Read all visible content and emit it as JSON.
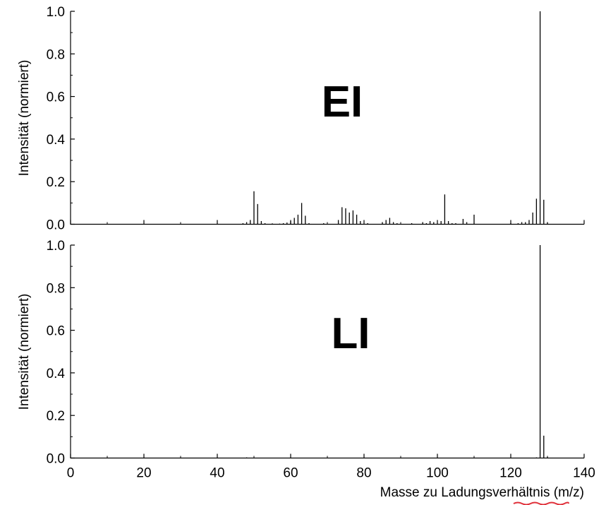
{
  "chart_data": [
    {
      "type": "bar",
      "title": "EI",
      "xlabel": "",
      "ylabel": "Intensität (normiert)",
      "xlim": [
        0,
        140
      ],
      "ylim": [
        0,
        1.0
      ],
      "x_ticks": [
        "0",
        "20",
        "40",
        "60",
        "80",
        "100",
        "120",
        "140"
      ],
      "y_ticks": [
        "0.0",
        "0.2",
        "0.4",
        "0.6",
        "0.8",
        "1.0"
      ],
      "grid": false,
      "series": [
        {
          "x": [
            47,
            48,
            49,
            50,
            51,
            52,
            53,
            55,
            57,
            58,
            59,
            60,
            61,
            62,
            63,
            64,
            65,
            69,
            73,
            74,
            75,
            76,
            77,
            78,
            79,
            81,
            85,
            86,
            87,
            88,
            89,
            93,
            96,
            97,
            98,
            99,
            101,
            102,
            103,
            104,
            105,
            107,
            108,
            110,
            120,
            122,
            123,
            124,
            125,
            126,
            127,
            128,
            129,
            130
          ],
          "values": [
            0.005,
            0.01,
            0.02,
            0.155,
            0.095,
            0.015,
            0.005,
            0.004,
            0.003,
            0.005,
            0.008,
            0.015,
            0.03,
            0.045,
            0.1,
            0.04,
            0.005,
            0.005,
            0.02,
            0.08,
            0.075,
            0.055,
            0.065,
            0.045,
            0.015,
            0.005,
            0.01,
            0.02,
            0.03,
            0.01,
            0.005,
            0.005,
            0.01,
            0.005,
            0.015,
            0.01,
            0.015,
            0.14,
            0.015,
            0.005,
            0.005,
            0.025,
            0.01,
            0.045,
            0.005,
            0.005,
            0.01,
            0.01,
            0.02,
            0.055,
            0.12,
            1.0,
            0.115,
            0.01
          ]
        }
      ]
    },
    {
      "type": "bar",
      "title": "LI",
      "xlabel": "Masse zu Ladungsverhältnis (m/z)",
      "ylabel": "Intensität (normiert)",
      "xlim": [
        0,
        140
      ],
      "ylim": [
        0,
        1.0
      ],
      "x_ticks": [
        "0",
        "20",
        "40",
        "60",
        "80",
        "100",
        "120",
        "140"
      ],
      "y_ticks": [
        "0.0",
        "0.2",
        "0.4",
        "0.6",
        "0.8",
        "1.0"
      ],
      "grid": false,
      "series": [
        {
          "x": [
            48,
            127,
            128,
            129,
            130
          ],
          "values": [
            0.003,
            0.003,
            1.0,
            0.105,
            0.005
          ]
        }
      ]
    }
  ],
  "colors": {
    "axis": "#000000",
    "bars": "#000000",
    "spellcheck_underline": "#e0303a"
  }
}
